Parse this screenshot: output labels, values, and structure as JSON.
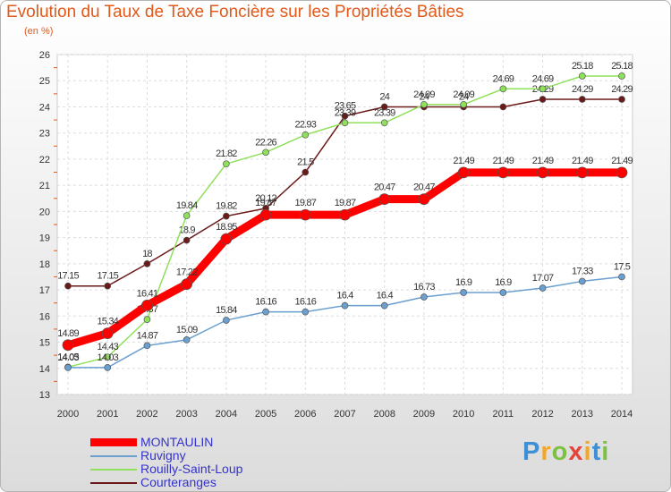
{
  "title": "Evolution du Taux de Taxe Foncière sur les Propriétés Bâties",
  "unit": "(en %)",
  "logo": {
    "letters": [
      "P",
      "r",
      "o",
      "x",
      "i",
      "t",
      "i"
    ],
    "colors": [
      "#3d8fd6",
      "#f5a623",
      "#7cc242",
      "#e5443b",
      "#f5a623",
      "#3d8fd6",
      "#7cc242"
    ]
  },
  "chart_data": {
    "type": "line",
    "x": [
      "2000",
      "2001",
      "2002",
      "2003",
      "2004",
      "2005",
      "2006",
      "2007",
      "2008",
      "2009",
      "2010",
      "2011",
      "2012",
      "2013",
      "2014"
    ],
    "ylim": [
      13,
      26
    ],
    "yticks": [
      "13",
      "14",
      "15",
      "16",
      "17",
      "18",
      "19",
      "20",
      "21",
      "22",
      "23",
      "24",
      "25",
      "26"
    ],
    "grid": true,
    "legend_position": "bottom-left",
    "series": [
      {
        "name": "Courteranges",
        "color": "#6b1a1a",
        "values": [
          17.15,
          17.15,
          18,
          18.9,
          19.82,
          20.12,
          21.5,
          23.65,
          24,
          24,
          24,
          24,
          24.29,
          24.29,
          24.29
        ],
        "labels": [
          "17.15",
          "17.15",
          "18",
          "18.9",
          "19.82",
          "20.12",
          "21.5",
          "23.65",
          "24",
          "24",
          "24",
          "",
          "24.29",
          "24.29",
          "24.29"
        ]
      },
      {
        "name": "Rouilly-Saint-Loup",
        "color": "#8fe05a",
        "values": [
          14.05,
          14.43,
          15.87,
          19.84,
          21.82,
          22.26,
          22.93,
          23.39,
          23.39,
          24.09,
          24.09,
          24.69,
          24.69,
          25.18,
          25.18
        ],
        "labels": [
          "14.05",
          "14.43",
          "15.87",
          "19.84",
          "21.82",
          "22.26",
          "22.93",
          "23.39",
          "23.39",
          "24.09",
          "24.09",
          "24.69",
          "24.69",
          "25.18",
          "25.18"
        ]
      },
      {
        "name": "Ruvigny",
        "color": "#6a9fd0",
        "values": [
          14.03,
          14.03,
          14.87,
          15.09,
          15.84,
          16.16,
          16.16,
          16.4,
          16.4,
          16.73,
          16.9,
          16.9,
          17.07,
          17.33,
          17.5
        ],
        "labels": [
          "14.03",
          "14.03",
          "14.87",
          "15.09",
          "15.84",
          "16.16",
          "16.16",
          "16.4",
          "16.4",
          "16.73",
          "16.9",
          "16.9",
          "17.07",
          "17.33",
          "17.5"
        ]
      },
      {
        "name": "MONTAULIN",
        "color": "#ff0000",
        "values": [
          14.89,
          15.34,
          16.41,
          17.22,
          18.95,
          19.87,
          19.87,
          19.87,
          20.47,
          20.47,
          21.49,
          21.49,
          21.49,
          21.49,
          21.49
        ],
        "labels": [
          "14.89",
          "15.34",
          "16.41",
          "17.22",
          "18.95",
          "19.87",
          "19.87",
          "19.87",
          "20.47",
          "20.47",
          "21.49",
          "21.49",
          "21.49",
          "21.49",
          "21.49"
        ]
      }
    ]
  },
  "legend_order": [
    3,
    2,
    1,
    0
  ]
}
